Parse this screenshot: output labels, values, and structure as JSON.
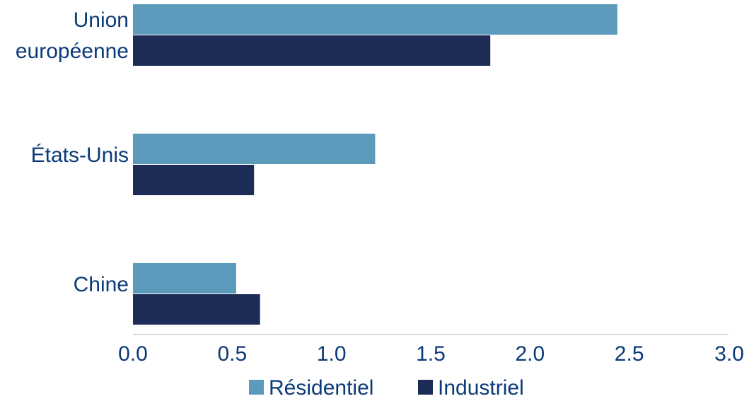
{
  "chart_data": {
    "type": "bar",
    "orientation": "horizontal",
    "categories": [
      [
        "Union",
        "européenne"
      ],
      [
        "États-Unis"
      ],
      [
        "Chine"
      ]
    ],
    "series": [
      {
        "name": "Résidentiel",
        "values": [
          2.44,
          1.22,
          0.52
        ],
        "color": "#5b9aba"
      },
      {
        "name": "Industriel",
        "values": [
          1.8,
          0.61,
          0.64
        ],
        "color": "#1c2c56"
      }
    ],
    "x_ticks": [
      "0.0",
      "0.5",
      "1.0",
      "1.5",
      "2.0",
      "2.5",
      "3.0"
    ],
    "xlim": [
      0,
      3.0
    ],
    "grid": false,
    "legend_position": "bottom-center",
    "title": "",
    "xlabel": "",
    "ylabel": ""
  }
}
